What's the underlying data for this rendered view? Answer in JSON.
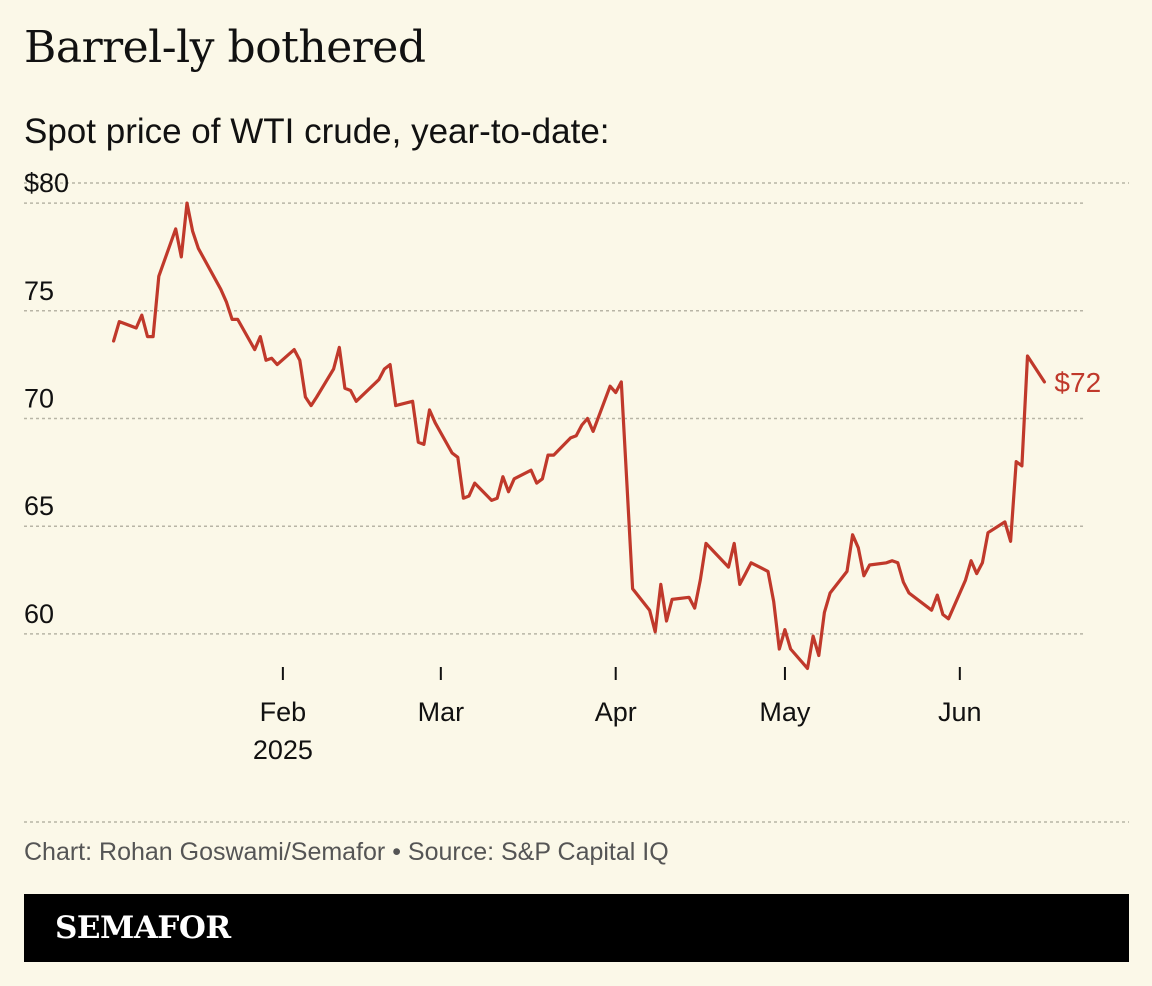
{
  "header": {
    "title": "Barrel-ly bothered",
    "subtitle": "Spot price of WTI crude, year-to-date:"
  },
  "footer": {
    "source": "Chart: Rohan Goswami/Semafor • Source: S&P Capital IQ",
    "brand": "SEMAFOR"
  },
  "colors": {
    "background": "#fbf8e8",
    "line": "#c0392b",
    "grid": "#b8b5a6",
    "brand_bar": "#000000"
  },
  "chart_data": {
    "type": "line",
    "title": "Spot price of WTI crude, year-to-date:",
    "xlabel": "",
    "ylabel": "",
    "ylim": [
      58,
      82
    ],
    "xlim": [
      "2025-01-01",
      "2025-06-20"
    ],
    "grid": "horizontal dashed",
    "y_ticks": [
      {
        "value": 80,
        "label": "$80"
      },
      {
        "value": 75,
        "label": "75"
      },
      {
        "value": 70,
        "label": "70"
      },
      {
        "value": 65,
        "label": "65"
      },
      {
        "value": 60,
        "label": "60"
      }
    ],
    "x_ticks": [
      {
        "date": "2025-02-01",
        "label": "Feb",
        "sublabel": "2025"
      },
      {
        "date": "2025-03-01",
        "label": "Mar",
        "sublabel": ""
      },
      {
        "date": "2025-04-01",
        "label": "Apr",
        "sublabel": ""
      },
      {
        "date": "2025-05-01",
        "label": "May",
        "sublabel": ""
      },
      {
        "date": "2025-06-01",
        "label": "Jun",
        "sublabel": ""
      }
    ],
    "end_label": "$72",
    "series": [
      {
        "name": "WTI",
        "points": [
          [
            "2025-01-02",
            73.6
          ],
          [
            "2025-01-03",
            74.5
          ],
          [
            "2025-01-06",
            74.2
          ],
          [
            "2025-01-07",
            74.8
          ],
          [
            "2025-01-08",
            73.8
          ],
          [
            "2025-01-09",
            73.8
          ],
          [
            "2025-01-10",
            76.6
          ],
          [
            "2025-01-13",
            78.8
          ],
          [
            "2025-01-14",
            77.5
          ],
          [
            "2025-01-15",
            80.0
          ],
          [
            "2025-01-16",
            78.7
          ],
          [
            "2025-01-17",
            77.9
          ],
          [
            "2025-01-21",
            76.0
          ],
          [
            "2025-01-22",
            75.4
          ],
          [
            "2025-01-23",
            74.6
          ],
          [
            "2025-01-24",
            74.6
          ],
          [
            "2025-01-27",
            73.2
          ],
          [
            "2025-01-28",
            73.8
          ],
          [
            "2025-01-29",
            72.7
          ],
          [
            "2025-01-30",
            72.8
          ],
          [
            "2025-01-31",
            72.5
          ],
          [
            "2025-02-03",
            73.2
          ],
          [
            "2025-02-04",
            72.7
          ],
          [
            "2025-02-05",
            71.0
          ],
          [
            "2025-02-06",
            70.6
          ],
          [
            "2025-02-07",
            71.0
          ],
          [
            "2025-02-10",
            72.3
          ],
          [
            "2025-02-11",
            73.3
          ],
          [
            "2025-02-12",
            71.4
          ],
          [
            "2025-02-13",
            71.3
          ],
          [
            "2025-02-14",
            70.8
          ],
          [
            "2025-02-18",
            71.8
          ],
          [
            "2025-02-19",
            72.3
          ],
          [
            "2025-02-20",
            72.5
          ],
          [
            "2025-02-21",
            70.6
          ],
          [
            "2025-02-24",
            70.8
          ],
          [
            "2025-02-25",
            68.9
          ],
          [
            "2025-02-26",
            68.8
          ],
          [
            "2025-02-27",
            70.4
          ],
          [
            "2025-02-28",
            69.8
          ],
          [
            "2025-03-03",
            68.4
          ],
          [
            "2025-03-04",
            68.2
          ],
          [
            "2025-03-05",
            66.3
          ],
          [
            "2025-03-06",
            66.4
          ],
          [
            "2025-03-07",
            67.0
          ],
          [
            "2025-03-10",
            66.2
          ],
          [
            "2025-03-11",
            66.3
          ],
          [
            "2025-03-12",
            67.3
          ],
          [
            "2025-03-13",
            66.6
          ],
          [
            "2025-03-14",
            67.2
          ],
          [
            "2025-03-17",
            67.6
          ],
          [
            "2025-03-18",
            67.0
          ],
          [
            "2025-03-19",
            67.2
          ],
          [
            "2025-03-20",
            68.3
          ],
          [
            "2025-03-21",
            68.3
          ],
          [
            "2025-03-24",
            69.1
          ],
          [
            "2025-03-25",
            69.2
          ],
          [
            "2025-03-26",
            69.7
          ],
          [
            "2025-03-27",
            70.0
          ],
          [
            "2025-03-28",
            69.4
          ],
          [
            "2025-03-31",
            71.5
          ],
          [
            "2025-04-01",
            71.2
          ],
          [
            "2025-04-02",
            71.7
          ],
          [
            "2025-04-03",
            66.9
          ],
          [
            "2025-04-04",
            62.1
          ],
          [
            "2025-04-07",
            61.1
          ],
          [
            "2025-04-08",
            60.1
          ],
          [
            "2025-04-09",
            62.3
          ],
          [
            "2025-04-10",
            60.6
          ],
          [
            "2025-04-11",
            61.6
          ],
          [
            "2025-04-14",
            61.7
          ],
          [
            "2025-04-15",
            61.2
          ],
          [
            "2025-04-16",
            62.5
          ],
          [
            "2025-04-17",
            64.2
          ],
          [
            "2025-04-21",
            63.1
          ],
          [
            "2025-04-22",
            64.2
          ],
          [
            "2025-04-23",
            62.3
          ],
          [
            "2025-04-24",
            62.8
          ],
          [
            "2025-04-25",
            63.3
          ],
          [
            "2025-04-28",
            62.9
          ],
          [
            "2025-04-29",
            61.5
          ],
          [
            "2025-04-30",
            59.3
          ],
          [
            "2025-05-01",
            60.2
          ],
          [
            "2025-05-02",
            59.3
          ],
          [
            "2025-05-05",
            58.4
          ],
          [
            "2025-05-06",
            59.9
          ],
          [
            "2025-05-07",
            59.0
          ],
          [
            "2025-05-08",
            61.0
          ],
          [
            "2025-05-09",
            61.9
          ],
          [
            "2025-05-12",
            62.9
          ],
          [
            "2025-05-13",
            64.6
          ],
          [
            "2025-05-14",
            64.0
          ],
          [
            "2025-05-15",
            62.7
          ],
          [
            "2025-05-16",
            63.2
          ],
          [
            "2025-05-19",
            63.3
          ],
          [
            "2025-05-20",
            63.4
          ],
          [
            "2025-05-21",
            63.3
          ],
          [
            "2025-05-22",
            62.4
          ],
          [
            "2025-05-23",
            61.9
          ],
          [
            "2025-05-27",
            61.1
          ],
          [
            "2025-05-28",
            61.8
          ],
          [
            "2025-05-29",
            60.9
          ],
          [
            "2025-05-30",
            60.7
          ],
          [
            "2025-06-02",
            62.5
          ],
          [
            "2025-06-03",
            63.4
          ],
          [
            "2025-06-04",
            62.8
          ],
          [
            "2025-06-05",
            63.3
          ],
          [
            "2025-06-06",
            64.7
          ],
          [
            "2025-06-09",
            65.2
          ],
          [
            "2025-06-10",
            64.3
          ],
          [
            "2025-06-11",
            68.0
          ],
          [
            "2025-06-12",
            67.8
          ],
          [
            "2025-06-13",
            72.9
          ],
          [
            "2025-06-16",
            71.7
          ]
        ]
      }
    ]
  }
}
